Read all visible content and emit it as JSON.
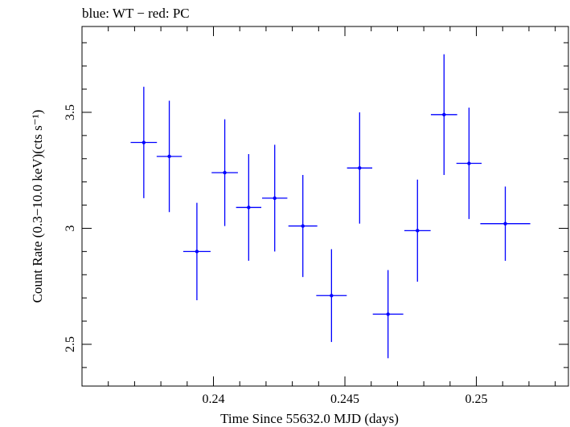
{
  "chart_data": {
    "type": "scatter",
    "title": "blue: WT − red: PC",
    "xlabel": "Time Since 55632.0 MJD (days)",
    "ylabel": "Count Rate (0.3−10.0 keV)(cts s⁻¹)",
    "xlim": [
      0.235,
      0.2535
    ],
    "ylim": [
      2.32,
      3.87
    ],
    "x_ticks": [
      0.24,
      0.245,
      0.25
    ],
    "x_tick_labels": [
      "0.24",
      "0.245",
      "0.25"
    ],
    "y_ticks": [
      2.5,
      3,
      3.5
    ],
    "y_tick_labels": [
      "2.5",
      "3",
      "3.5"
    ],
    "grid": false,
    "series": [
      {
        "name": "WT",
        "color": "#0000ff",
        "points": [
          {
            "x": 0.23735,
            "y": 3.37,
            "xerr": 0.0005,
            "yerr": 0.24
          },
          {
            "x": 0.23832,
            "y": 3.31,
            "xerr": 0.00048,
            "yerr": 0.24
          },
          {
            "x": 0.23937,
            "y": 2.9,
            "xerr": 0.00052,
            "yerr": 0.21
          },
          {
            "x": 0.24043,
            "y": 3.24,
            "xerr": 0.0005,
            "yerr": 0.23
          },
          {
            "x": 0.24134,
            "y": 3.09,
            "xerr": 0.00048,
            "yerr": 0.23
          },
          {
            "x": 0.24233,
            "y": 3.13,
            "xerr": 0.00048,
            "yerr": 0.23
          },
          {
            "x": 0.2434,
            "y": 3.01,
            "xerr": 0.00055,
            "yerr": 0.22
          },
          {
            "x": 0.24449,
            "y": 2.71,
            "xerr": 0.00058,
            "yerr": 0.2
          },
          {
            "x": 0.24556,
            "y": 3.26,
            "xerr": 0.00048,
            "yerr": 0.24
          },
          {
            "x": 0.24664,
            "y": 2.63,
            "xerr": 0.00058,
            "yerr": 0.19
          },
          {
            "x": 0.24776,
            "y": 2.99,
            "xerr": 0.0005,
            "yerr": 0.22
          },
          {
            "x": 0.24877,
            "y": 3.49,
            "xerr": 0.0005,
            "yerr": 0.26
          },
          {
            "x": 0.24972,
            "y": 3.28,
            "xerr": 0.00048,
            "yerr": 0.24
          },
          {
            "x": 0.2511,
            "y": 3.02,
            "xerr": 0.00095,
            "yerr": 0.16
          }
        ]
      }
    ]
  }
}
